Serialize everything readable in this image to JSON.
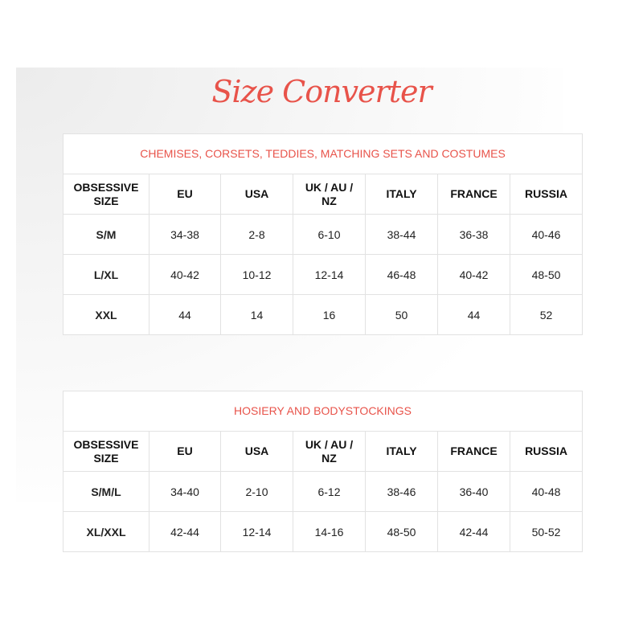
{
  "title": "Size Converter",
  "accent_color": "#e8534a",
  "columns": [
    "OBSESSIVE SIZE",
    "EU",
    "USA",
    "UK / AU / NZ",
    "ITALY",
    "FRANCE",
    "RUSSIA"
  ],
  "tables": [
    {
      "caption": "CHEMISES, CORSETS, TEDDIES, MATCHING SETS AND COSTUMES",
      "rows": [
        [
          "S/M",
          "34-38",
          "2-8",
          "6-10",
          "38-44",
          "36-38",
          "40-46"
        ],
        [
          "L/XL",
          "40-42",
          "10-12",
          "12-14",
          "46-48",
          "40-42",
          "48-50"
        ],
        [
          "XXL",
          "44",
          "14",
          "16",
          "50",
          "44",
          "52"
        ]
      ]
    },
    {
      "caption": "HOSIERY AND BODYSTOCKINGS",
      "rows": [
        [
          "S/M/L",
          "34-40",
          "2-10",
          "6-12",
          "38-46",
          "36-40",
          "40-48"
        ],
        [
          "XL/XXL",
          "42-44",
          "12-14",
          "14-16",
          "48-50",
          "42-44",
          "50-52"
        ]
      ]
    }
  ]
}
